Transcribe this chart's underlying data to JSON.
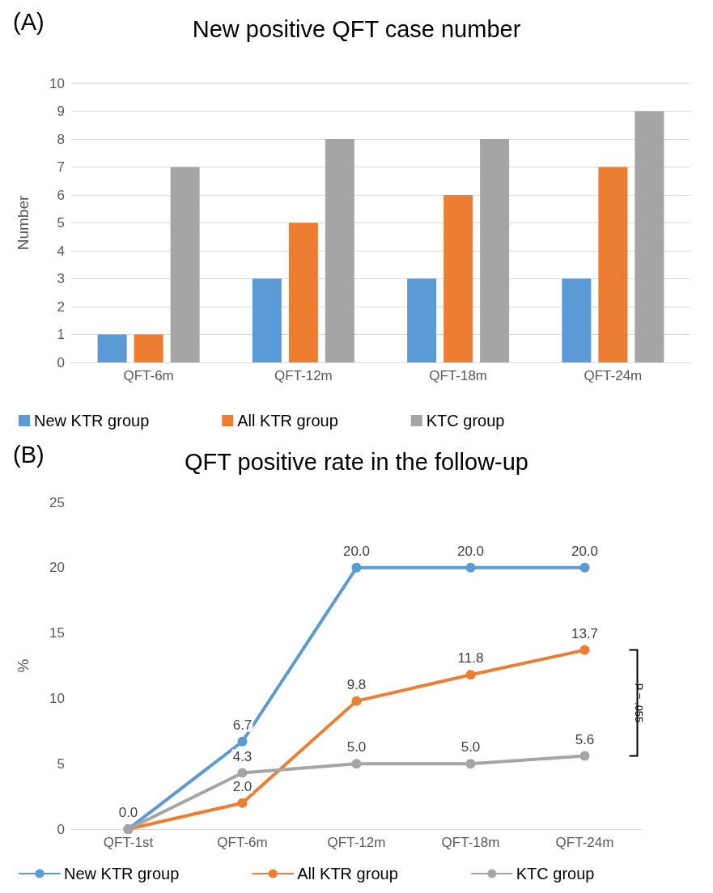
{
  "chart_data": [
    {
      "type": "bar",
      "title": "New positive QFT case number",
      "ylabel": "Number",
      "annotations": [
        "(A)"
      ],
      "categories": [
        "QFT-6m",
        "QFT-12m",
        "QFT-18m",
        "QFT-24m"
      ],
      "series": [
        {
          "name": "New KTR group",
          "color": "#5b9bd5",
          "values": [
            1,
            3,
            3,
            3
          ]
        },
        {
          "name": "All KTR group",
          "color": "#ed7d31",
          "values": [
            1,
            5,
            6,
            7
          ]
        },
        {
          "name": "KTC group",
          "color": "#a5a5a5",
          "values": [
            7,
            8,
            8,
            9
          ]
        }
      ],
      "ylim": [
        0,
        10
      ],
      "yticks": [
        0,
        1,
        2,
        3,
        4,
        5,
        6,
        7,
        8,
        9,
        10
      ],
      "grid": "y",
      "legend": "bottom"
    },
    {
      "type": "line",
      "title": "QFT positive rate in the follow-up",
      "ylabel": "%",
      "annotations": [
        "(B)",
        "P = .055"
      ],
      "categories": [
        "QFT-1st",
        "QFT-6m",
        "QFT-12m",
        "QFT-18m",
        "QFT-24m"
      ],
      "series": [
        {
          "name": "New KTR group",
          "color": "#5b9bd5",
          "values": [
            0,
            6.7,
            20,
            20,
            20
          ],
          "value_labels": [
            "0.0",
            "6.7",
            "20.0",
            "20.0",
            "20.0"
          ]
        },
        {
          "name": "All KTR group",
          "color": "#ed7d31",
          "values": [
            0,
            2,
            9.8,
            11.8,
            13.7
          ],
          "value_labels": [
            null,
            "2.0",
            "9.8",
            "11.8",
            "13.7"
          ]
        },
        {
          "name": "KTC group",
          "color": "#a5a5a5",
          "values": [
            0,
            4.3,
            5,
            5,
            5.6
          ],
          "value_labels": [
            null,
            "4.3",
            "5.0",
            "5.0",
            "5.6"
          ]
        }
      ],
      "ylim": [
        0,
        25
      ],
      "yticks": [
        0,
        5,
        10,
        15,
        20,
        25
      ],
      "grid": false,
      "legend": "bottom",
      "marker": "circle",
      "line_style": "solid"
    }
  ]
}
